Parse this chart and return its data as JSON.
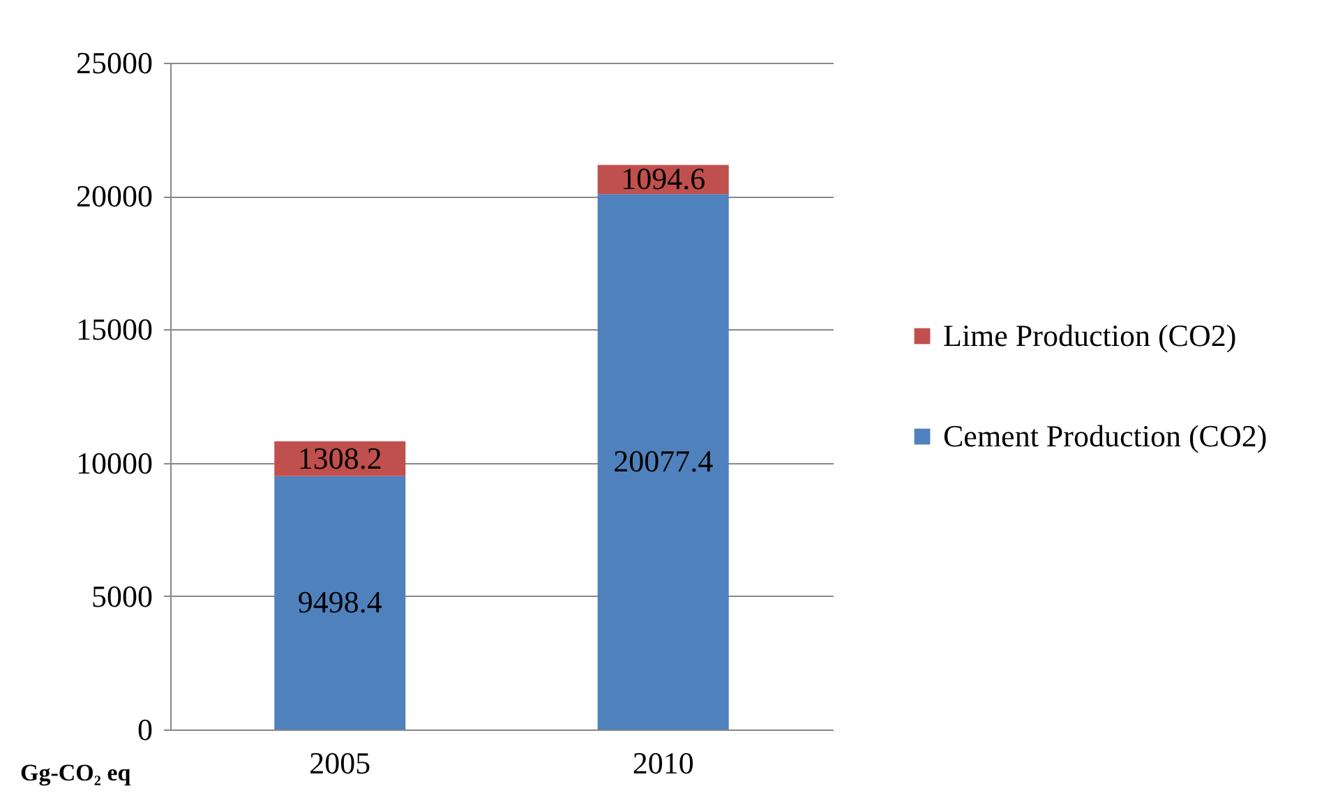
{
  "chart_data": {
    "type": "bar",
    "stacked": true,
    "ylabel": "Gg-CO₂ eq",
    "categories": [
      "2005",
      "2010"
    ],
    "series": [
      {
        "name": "Cement Production (CO2)",
        "color": "#4f81bd",
        "values": [
          9498.4,
          20077.4
        ]
      },
      {
        "name": "Lime Production (CO2)",
        "color": "#c0504d",
        "values": [
          1308.2,
          1094.6
        ]
      }
    ],
    "ylim": [
      0,
      25000
    ],
    "yticks": [
      0,
      5000,
      10000,
      15000,
      20000,
      25000
    ],
    "grid": "y",
    "legend": "right",
    "data_labels": true
  }
}
